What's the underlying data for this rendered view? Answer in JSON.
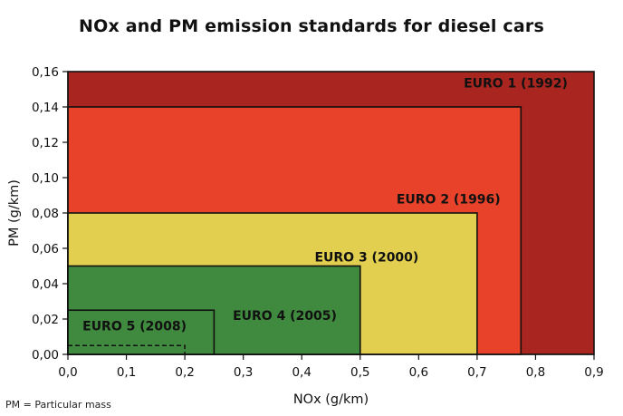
{
  "chart_data": {
    "type": "area",
    "title": "NOx and PM emission standards for diesel cars",
    "xlabel": "NOx (g/km)",
    "ylabel": "PM (g/km)",
    "xlim": [
      0,
      0.9
    ],
    "ylim": [
      0,
      0.16
    ],
    "x_ticks": [
      "0,0",
      "0,1",
      "0,2",
      "0,3",
      "0,4",
      "0,5",
      "0,6",
      "0,7",
      "0,8",
      "0,9"
    ],
    "y_ticks": [
      "0,00",
      "0,02",
      "0,04",
      "0,06",
      "0,08",
      "0,10",
      "0,12",
      "0,14",
      "0,16"
    ],
    "grid": false,
    "legend": "none",
    "regions": [
      {
        "label": "EURO 1 (1992)",
        "nox": 0.9,
        "pm": 0.16,
        "color": "#a8261f"
      },
      {
        "label": "EURO 2 (1996)",
        "nox": 0.775,
        "pm": 0.14,
        "color": "#e8432a"
      },
      {
        "label": "EURO 3 (2000)",
        "nox": 0.7,
        "pm": 0.08,
        "color": "#e2cf4f"
      },
      {
        "label": "EURO 4 (2005)",
        "nox": 0.5,
        "pm": 0.05,
        "color": "#3f8a3e"
      },
      {
        "label": "EURO 5 (2008)",
        "nox": 0.25,
        "pm": 0.025,
        "color": "#3f8a3e"
      }
    ],
    "dashed_region": {
      "nox": 0.2,
      "pm": 0.005
    }
  },
  "footnote": "PM = Particular mass"
}
